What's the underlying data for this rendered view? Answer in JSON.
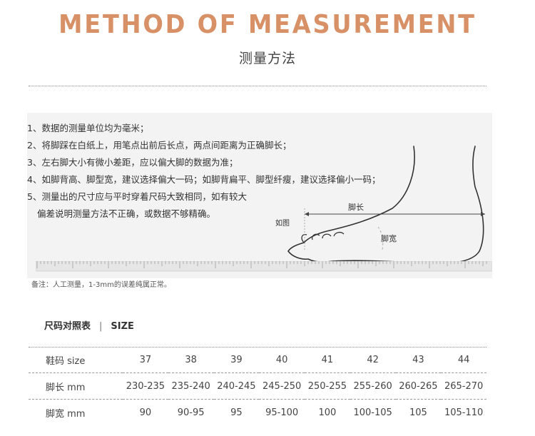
{
  "header": {
    "title": "METHOD OF MEASUREMENT",
    "subtitle": "测量方法"
  },
  "notes": [
    "1、数据的测量单位均为毫米；",
    "2、将脚踩在白纸上，用笔点出前后长点，两点间距离为正确脚长；",
    "3、左右脚大小有微小差距，应以偏大脚的数据为准；",
    "4、如脚背高、脚型宽，建议选择偏大一码；如脚背扁平、脚型纤瘦，建议选择偏小一码；",
    "5、测量出的尺寸应与平时穿着尺码大致相同，如有较大",
    "偏差说明测量方法不正确，或数据不够精确。"
  ],
  "illustration": {
    "example_label": "如图",
    "length_label": "脚长",
    "width_label": "脚宽",
    "icons": [
      "foot-outline-icon",
      "ruler-icon"
    ]
  },
  "remark": "备注：人工测量，1-3mm的误差纯属正常。",
  "size_section": {
    "title": "尺码对照表",
    "separator": "|",
    "title_en": "SIZE"
  },
  "size_table": {
    "rows": [
      {
        "label": "鞋码 size",
        "cells": [
          "37",
          "38",
          "39",
          "40",
          "41",
          "42",
          "43",
          "44"
        ]
      },
      {
        "label": "脚长 mm",
        "cells": [
          "230-235",
          "235-240",
          "240-245",
          "245-250",
          "250-255",
          "255-260",
          "260-265",
          "265-270"
        ]
      },
      {
        "label": "脚宽 mm",
        "cells": [
          "90",
          "90-95",
          "95",
          "95-100",
          "100",
          "100-105",
          "105",
          "105-110"
        ]
      }
    ]
  },
  "colors": {
    "title": "#d89066",
    "panel": "#f3f3f3",
    "text": "#333333"
  }
}
